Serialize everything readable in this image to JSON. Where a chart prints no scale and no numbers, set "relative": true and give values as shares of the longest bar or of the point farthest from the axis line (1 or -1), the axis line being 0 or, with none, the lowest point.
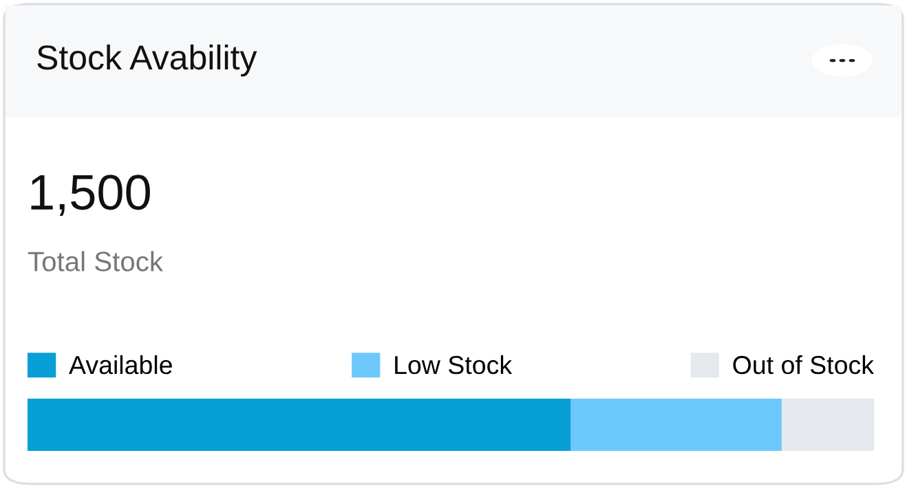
{
  "chart_data": {
    "type": "bar",
    "title": "Stock Avability",
    "annotations": [
      "1,500",
      "Total Stock"
    ],
    "categories": [
      null
    ],
    "orientation": "horizontal",
    "stacked": true,
    "relative": true,
    "legend": "top",
    "series": [
      {
        "name": "Available",
        "color": "#079fd6",
        "values": [
          0.642
        ]
      },
      {
        "name": "Low Stock",
        "color": "#6cc8fb",
        "values": [
          0.249
        ]
      },
      {
        "name": "Out of Stock",
        "color": "#e5e9ee",
        "values": [
          0.109
        ]
      }
    ]
  }
}
